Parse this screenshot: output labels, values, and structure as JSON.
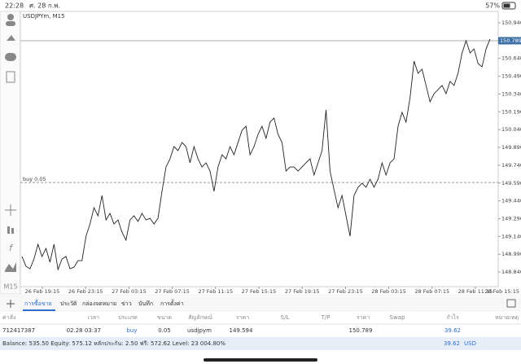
{
  "status_bar": {
    "time": "22:28",
    "date": "ศ. 28 ก.พ.",
    "battery": "57%"
  },
  "chart": {
    "type": "line",
    "symbol": "USDJPYm, M15",
    "timeframe": "M15",
    "color": "#222222",
    "order_label": "buy 0.05",
    "ylim": [
      148.717,
      151.036
    ],
    "yticks": [
      {
        "value": 150.94,
        "label": "150.940"
      },
      {
        "value": 150.64,
        "label": "150.640"
      },
      {
        "value": 150.49,
        "label": "150.490"
      },
      {
        "value": 150.34,
        "label": "150.340"
      },
      {
        "value": 150.19,
        "label": "150.190"
      },
      {
        "value": 150.04,
        "label": "150.040"
      },
      {
        "value": 149.89,
        "label": "149.890"
      },
      {
        "value": 149.74,
        "label": "149.740"
      },
      {
        "value": 149.59,
        "label": "149.590"
      },
      {
        "value": 149.44,
        "label": "149.440"
      },
      {
        "value": 149.29,
        "label": "149.290"
      },
      {
        "value": 149.14,
        "label": "149.140"
      },
      {
        "value": 148.99,
        "label": "148.990"
      },
      {
        "value": 148.84,
        "label": "148.840"
      }
    ],
    "xticks": [
      "26 Feb 19:15",
      "26 Feb 23:15",
      "27 Feb 03:15",
      "27 Feb 07:15",
      "27 Feb 11:15",
      "27 Feb 15:15",
      "27 Feb 19:15",
      "27 Feb 23:15",
      "28 Feb 03:15",
      "28 Feb 07:15",
      "28 Feb 11:15",
      "28 Feb 15:15"
    ],
    "values": [
      148.971,
      148.888,
      148.868,
      148.95,
      149.074,
      148.971,
      149.039,
      148.923,
      149.074,
      148.861,
      148.95,
      148.971,
      148.868,
      148.881,
      148.936,
      148.936,
      149.142,
      149.245,
      149.382,
      149.314,
      149.485,
      149.279,
      149.334,
      149.245,
      149.279,
      149.176,
      149.108,
      149.279,
      149.314,
      149.266,
      149.334,
      149.279,
      149.293,
      149.245,
      149.293,
      149.52,
      149.725,
      149.794,
      149.897,
      149.863,
      149.931,
      149.897,
      149.76,
      149.897,
      149.794,
      149.725,
      149.76,
      149.691,
      149.52,
      149.725,
      149.828,
      149.794,
      149.897,
      149.828,
      149.931,
      150.034,
      150.069,
      149.828,
      149.897,
      150.0,
      150.069,
      149.966,
      150.103,
      150.137,
      150.0,
      149.931,
      149.691,
      149.725,
      149.725,
      149.691,
      149.725,
      149.76,
      149.794,
      149.657,
      149.76,
      149.863,
      150.206,
      149.691,
      149.533,
      149.382,
      149.485,
      149.314,
      149.142,
      149.485,
      149.554,
      149.588,
      149.554,
      149.622,
      149.554,
      149.622,
      149.76,
      149.657,
      149.76,
      149.794,
      150.069,
      150.185,
      150.103,
      150.309,
      150.617,
      150.515,
      150.549,
      150.412,
      150.274,
      150.343,
      150.377,
      150.412,
      150.343,
      150.446,
      150.412,
      150.515,
      150.686,
      150.789,
      150.686,
      150.72,
      150.597,
      150.569,
      150.72,
      150.803
    ]
  },
  "tabs": [
    "การซื้อขาย",
    "ประวัติ",
    "กล่องจดหมาย",
    "ข่าว",
    "บันทึก",
    "การตั้งค่า"
  ],
  "trades": {
    "header": [
      "ค่าสั่ง",
      "เวลา",
      "ประเภท",
      "ขนาด",
      "สัญลักษณ์",
      "ราคา",
      "S/L",
      "T/P",
      "ราคา",
      "Swap",
      "กำไร",
      "หมายเหตุ"
    ],
    "rows": [
      [
        "712417387",
        "02.28 03:37",
        "buy",
        "0.05",
        "usdjpym",
        149.594,
        null,
        null,
        150.789,
        null,
        "39.62",
        null
      ]
    ]
  },
  "footer": {
    "summary": "Balance: 535.50 Equity: 575.12 หลักประกัน: 2.50 ฟรี: 572.62 Level: 23 004.80%",
    "profit": "39.62",
    "currency": "USD"
  }
}
